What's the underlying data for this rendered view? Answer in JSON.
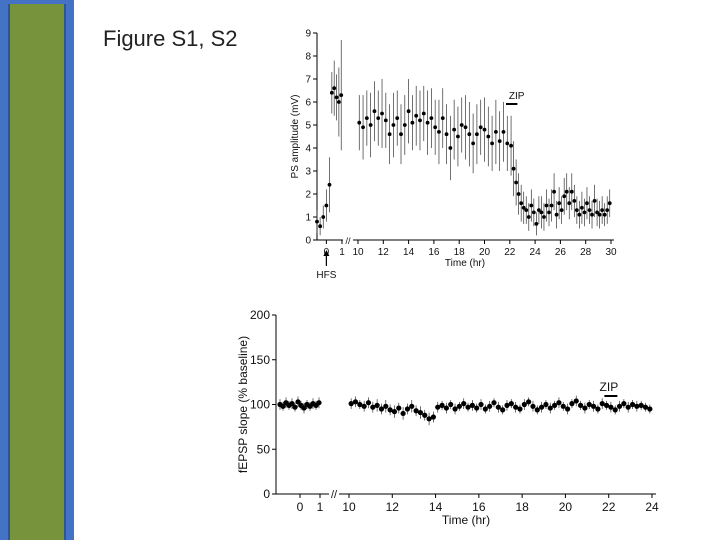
{
  "slide": {
    "title": "Figure S1, S2",
    "colors": {
      "side_bar_blue": "#4472c4",
      "side_bar_green": "#77933c",
      "marker": "#000000"
    }
  },
  "chart_data": [
    {
      "type": "scatter",
      "title": "",
      "xlabel": "Time (hr)",
      "ylabel": "PS amplitude (mV)",
      "ylim": [
        0,
        9
      ],
      "yticks": [
        "0",
        "1",
        "2",
        "3",
        "4",
        "5",
        "6",
        "7",
        "8",
        "9"
      ],
      "xticks": [
        "0",
        "1",
        "10",
        "12",
        "14",
        "16",
        "18",
        "20",
        "22",
        "24",
        "26",
        "28",
        "30"
      ],
      "axis_break": "//",
      "annotations": {
        "arrow_label": "HFS",
        "bar_label": "ZIP",
        "zip_start_hr": 21.7,
        "zip_end_hr": 22.6
      },
      "series": [
        {
          "points": [
            [
              -0.6,
              0.8,
              0.5
            ],
            [
              -0.4,
              0.6,
              0.4
            ],
            [
              -0.2,
              1.0,
              0.5
            ],
            [
              0.0,
              1.5,
              0.7
            ],
            [
              0.2,
              2.4,
              1.2
            ],
            [
              0.35,
              6.4,
              0.9
            ],
            [
              0.5,
              6.6,
              1.2
            ],
            [
              0.65,
              6.2,
              1.0
            ],
            [
              0.8,
              6.0,
              1.5
            ],
            [
              0.95,
              6.3,
              2.4
            ],
            [
              10.1,
              5.1,
              1.2
            ],
            [
              10.4,
              4.9,
              1.4
            ],
            [
              10.7,
              5.3,
              1.2
            ],
            [
              11.0,
              5.0,
              1.4
            ],
            [
              11.3,
              5.6,
              1.3
            ],
            [
              11.6,
              5.3,
              1.2
            ],
            [
              11.9,
              5.5,
              1.5
            ],
            [
              12.2,
              5.2,
              1.2
            ],
            [
              12.5,
              4.6,
              1.3
            ],
            [
              12.8,
              5.0,
              1.4
            ],
            [
              13.1,
              5.3,
              1.2
            ],
            [
              13.4,
              4.6,
              1.3
            ],
            [
              13.7,
              5.0,
              1.3
            ],
            [
              14.0,
              5.6,
              1.4
            ],
            [
              14.3,
              5.1,
              1.2
            ],
            [
              14.6,
              5.4,
              1.3
            ],
            [
              14.9,
              5.2,
              1.3
            ],
            [
              15.2,
              5.5,
              1.2
            ],
            [
              15.5,
              5.1,
              1.4
            ],
            [
              15.8,
              5.3,
              1.3
            ],
            [
              16.1,
              4.9,
              1.2
            ],
            [
              16.4,
              4.7,
              1.4
            ],
            [
              16.7,
              5.3,
              1.3
            ],
            [
              17.0,
              4.6,
              1.3
            ],
            [
              17.3,
              4.0,
              1.4
            ],
            [
              17.6,
              4.8,
              1.3
            ],
            [
              17.9,
              4.5,
              1.3
            ],
            [
              18.2,
              5.0,
              1.2
            ],
            [
              18.5,
              4.9,
              1.4
            ],
            [
              18.8,
              4.6,
              1.4
            ],
            [
              19.1,
              4.2,
              1.3
            ],
            [
              19.4,
              4.6,
              1.3
            ],
            [
              19.7,
              4.9,
              1.2
            ],
            [
              20.0,
              4.8,
              1.4
            ],
            [
              20.3,
              4.5,
              1.3
            ],
            [
              20.6,
              4.2,
              1.2
            ],
            [
              20.9,
              4.7,
              1.4
            ],
            [
              21.2,
              4.3,
              1.3
            ],
            [
              21.5,
              4.7,
              1.3
            ],
            [
              21.8,
              4.2,
              1.2
            ],
            [
              22.1,
              4.1,
              1.3
            ],
            [
              22.3,
              3.1,
              1.2
            ],
            [
              22.5,
              2.5,
              1.0
            ],
            [
              22.7,
              2.0,
              0.9
            ],
            [
              22.9,
              1.6,
              0.8
            ],
            [
              23.1,
              1.4,
              0.7
            ],
            [
              23.3,
              1.3,
              0.6
            ],
            [
              23.5,
              1.0,
              0.6
            ],
            [
              23.7,
              1.5,
              0.7
            ],
            [
              23.9,
              1.2,
              0.6
            ],
            [
              24.1,
              0.7,
              0.5
            ],
            [
              24.3,
              1.3,
              0.6
            ],
            [
              24.5,
              1.2,
              0.7
            ],
            [
              24.7,
              1.0,
              0.6
            ],
            [
              24.9,
              1.5,
              0.7
            ],
            [
              25.1,
              1.2,
              0.6
            ],
            [
              25.3,
              1.5,
              0.7
            ],
            [
              25.5,
              2.1,
              0.8
            ],
            [
              25.7,
              1.1,
              0.6
            ],
            [
              25.9,
              1.6,
              0.7
            ],
            [
              26.1,
              1.3,
              0.6
            ],
            [
              26.3,
              1.9,
              0.8
            ],
            [
              26.5,
              2.1,
              0.8
            ],
            [
              26.7,
              1.6,
              0.7
            ],
            [
              26.9,
              2.1,
              0.8
            ],
            [
              27.1,
              1.7,
              0.7
            ],
            [
              27.3,
              1.3,
              0.6
            ],
            [
              27.5,
              1.1,
              0.6
            ],
            [
              27.7,
              1.4,
              0.7
            ],
            [
              27.9,
              1.2,
              0.6
            ],
            [
              28.1,
              1.6,
              0.7
            ],
            [
              28.3,
              1.3,
              0.6
            ],
            [
              28.5,
              1.1,
              0.6
            ],
            [
              28.7,
              1.7,
              0.7
            ],
            [
              28.9,
              1.2,
              0.6
            ],
            [
              29.1,
              1.1,
              0.6
            ],
            [
              29.3,
              1.3,
              0.6
            ],
            [
              29.5,
              1.1,
              0.5
            ],
            [
              29.7,
              1.3,
              0.6
            ],
            [
              29.9,
              1.6,
              0.6
            ]
          ]
        }
      ]
    },
    {
      "type": "scatter",
      "title": "",
      "xlabel": "Time (hr)",
      "ylabel": "fEPSP slope (% baseline)",
      "ylim": [
        0,
        200
      ],
      "yticks": [
        "0",
        "50",
        "100",
        "150",
        "200"
      ],
      "xticks": [
        "0",
        "1",
        "10",
        "12",
        "14",
        "16",
        "18",
        "20",
        "22",
        "24"
      ],
      "axis_break": "//",
      "annotations": {
        "bar_label": "ZIP",
        "zip_start_hr": 21.8,
        "zip_end_hr": 22.4
      },
      "series": [
        {
          "points": [
            [
              -1.0,
              100,
              6
            ],
            [
              -0.85,
              98,
              5
            ],
            [
              -0.7,
              102,
              6
            ],
            [
              -0.55,
              99,
              5
            ],
            [
              -0.4,
              101,
              6
            ],
            [
              -0.25,
              97,
              5
            ],
            [
              -0.1,
              103,
              6
            ],
            [
              0.05,
              99,
              5
            ],
            [
              0.2,
              96,
              6
            ],
            [
              0.35,
              100,
              5
            ],
            [
              0.5,
              98,
              5
            ],
            [
              0.65,
              101,
              6
            ],
            [
              0.8,
              99,
              5
            ],
            [
              0.95,
              102,
              6
            ],
            [
              10.1,
              101,
              6
            ],
            [
              10.3,
              103,
              6
            ],
            [
              10.5,
              100,
              5
            ],
            [
              10.7,
              98,
              6
            ],
            [
              10.9,
              102,
              6
            ],
            [
              11.1,
              97,
              6
            ],
            [
              11.3,
              99,
              7
            ],
            [
              11.5,
              95,
              6
            ],
            [
              11.7,
              98,
              7
            ],
            [
              11.9,
              94,
              6
            ],
            [
              12.1,
              92,
              7
            ],
            [
              12.3,
              96,
              6
            ],
            [
              12.5,
              90,
              7
            ],
            [
              12.7,
              95,
              6
            ],
            [
              12.9,
              98,
              7
            ],
            [
              13.1,
              93,
              6
            ],
            [
              13.3,
              91,
              7
            ],
            [
              13.5,
              88,
              6
            ],
            [
              13.7,
              84,
              7
            ],
            [
              13.9,
              86,
              6
            ],
            [
              14.1,
              97,
              6
            ],
            [
              14.3,
              99,
              5
            ],
            [
              14.5,
              96,
              6
            ],
            [
              14.7,
              100,
              5
            ],
            [
              14.9,
              95,
              6
            ],
            [
              15.1,
              98,
              5
            ],
            [
              15.3,
              101,
              6
            ],
            [
              15.5,
              97,
              5
            ],
            [
              15.7,
              99,
              6
            ],
            [
              15.9,
              96,
              5
            ],
            [
              16.1,
              100,
              6
            ],
            [
              16.3,
              95,
              5
            ],
            [
              16.5,
              98,
              6
            ],
            [
              16.7,
              102,
              5
            ],
            [
              16.9,
              97,
              6
            ],
            [
              17.1,
              94,
              5
            ],
            [
              17.3,
              99,
              6
            ],
            [
              17.5,
              101,
              5
            ],
            [
              17.7,
              97,
              6
            ],
            [
              17.9,
              95,
              5
            ],
            [
              18.1,
              100,
              6
            ],
            [
              18.3,
              103,
              5
            ],
            [
              18.5,
              98,
              6
            ],
            [
              18.7,
              94,
              5
            ],
            [
              18.9,
              97,
              6
            ],
            [
              19.1,
              100,
              5
            ],
            [
              19.3,
              96,
              6
            ],
            [
              19.5,
              99,
              5
            ],
            [
              19.7,
              102,
              6
            ],
            [
              19.9,
              98,
              5
            ],
            [
              20.1,
              95,
              6
            ],
            [
              20.3,
              101,
              5
            ],
            [
              20.5,
              104,
              6
            ],
            [
              20.7,
              99,
              5
            ],
            [
              20.9,
              96,
              6
            ],
            [
              21.1,
              100,
              5
            ],
            [
              21.3,
              98,
              6
            ],
            [
              21.5,
              95,
              5
            ],
            [
              21.7,
              101,
              6
            ],
            [
              21.9,
              99,
              5
            ],
            [
              22.1,
              97,
              6
            ],
            [
              22.3,
              94,
              5
            ],
            [
              22.5,
              98,
              6
            ],
            [
              22.7,
              101,
              5
            ],
            [
              22.9,
              97,
              6
            ],
            [
              23.1,
              100,
              5
            ],
            [
              23.3,
              98,
              6
            ],
            [
              23.5,
              99,
              5
            ],
            [
              23.7,
              97,
              5
            ],
            [
              23.9,
              95,
              5
            ]
          ]
        }
      ]
    }
  ]
}
